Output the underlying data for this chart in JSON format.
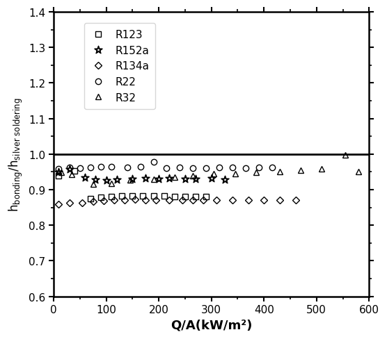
{
  "xlabel": "Q/A(kW/m²)",
  "xlim": [
    0,
    600
  ],
  "ylim": [
    0.6,
    1.4
  ],
  "yticks": [
    0.6,
    0.7,
    0.8,
    0.9,
    1.0,
    1.1,
    1.2,
    1.3,
    1.4
  ],
  "xticks": [
    0,
    100,
    200,
    300,
    400,
    500,
    600
  ],
  "hline_y": 1.0,
  "series": {
    "R123": {
      "x": [
        10,
        40,
        70,
        90,
        110,
        130,
        150,
        170,
        190,
        210,
        230,
        250,
        270,
        290
      ],
      "y": [
        0.94,
        0.952,
        0.875,
        0.878,
        0.88,
        0.882,
        0.882,
        0.883,
        0.883,
        0.882,
        0.881,
        0.88,
        0.88,
        0.88
      ],
      "marker": "s",
      "markersize": 5.5,
      "fillstyle": "none"
    },
    "R152a": {
      "x": [
        10,
        30,
        60,
        80,
        100,
        120,
        150,
        175,
        200,
        220,
        250,
        270,
        300,
        325
      ],
      "y": [
        0.95,
        0.958,
        0.935,
        0.93,
        0.928,
        0.93,
        0.932,
        0.934,
        0.932,
        0.933,
        0.932,
        0.932,
        0.933,
        0.93
      ],
      "marker": "$☆$",
      "markersize": 7,
      "fillstyle": "none"
    },
    "R134a": {
      "x": [
        10,
        30,
        55,
        75,
        95,
        115,
        135,
        155,
        175,
        195,
        220,
        245,
        265,
        285,
        310,
        340,
        370,
        400,
        430,
        460
      ],
      "y": [
        0.858,
        0.863,
        0.863,
        0.866,
        0.869,
        0.87,
        0.871,
        0.872,
        0.871,
        0.871,
        0.871,
        0.87,
        0.87,
        0.87,
        0.87,
        0.87,
        0.87,
        0.87,
        0.87,
        0.87
      ],
      "marker": "D",
      "markersize": 5,
      "fillstyle": "none"
    },
    "R22": {
      "x": [
        10,
        30,
        50,
        70,
        90,
        110,
        140,
        165,
        190,
        215,
        240,
        265,
        290,
        315,
        340,
        365,
        390,
        415
      ],
      "y": [
        0.958,
        0.963,
        0.96,
        0.962,
        0.965,
        0.964,
        0.963,
        0.964,
        0.978,
        0.96,
        0.963,
        0.961,
        0.96,
        0.963,
        0.962,
        0.96,
        0.962,
        0.962
      ],
      "marker": "o",
      "markersize": 6,
      "fillstyle": "none"
    },
    "R32": {
      "x": [
        15,
        35,
        75,
        110,
        145,
        190,
        230,
        265,
        305,
        345,
        385,
        430,
        470,
        510,
        555,
        580
      ],
      "y": [
        0.948,
        0.942,
        0.916,
        0.918,
        0.928,
        0.93,
        0.936,
        0.94,
        0.944,
        0.944,
        0.949,
        0.951,
        0.954,
        0.958,
        0.998,
        0.951
      ],
      "marker": "^",
      "markersize": 5.5,
      "fillstyle": "none"
    }
  },
  "legend_labels": [
    "R123",
    "R152a",
    "R134a",
    "R22",
    "R32"
  ],
  "legend_markers": [
    "s",
    "star",
    "D",
    "o",
    "^"
  ],
  "title_fontsize": 12,
  "axis_fontsize": 13,
  "tick_fontsize": 11,
  "legend_fontsize": 11
}
